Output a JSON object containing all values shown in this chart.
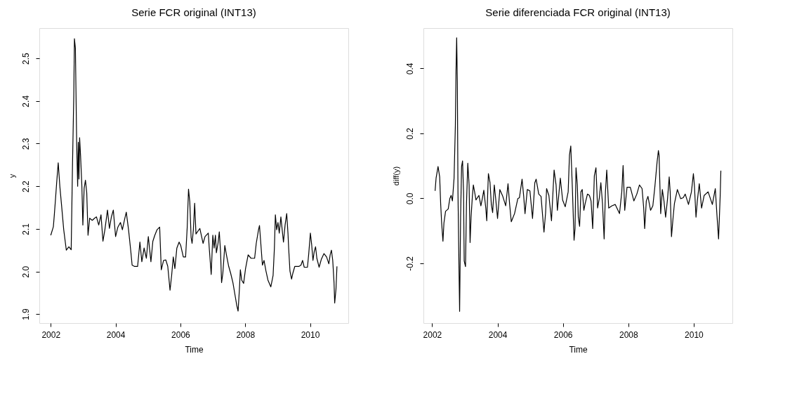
{
  "chart_data": [
    {
      "type": "line",
      "title": "Serie FCR original (INT13)",
      "xlabel": "Time",
      "ylabel": "y",
      "color": "#000000",
      "grid": false,
      "xlim": [
        2001.647,
        2011.18
      ],
      "xticks": [
        2002,
        2004,
        2006,
        2008,
        2010
      ],
      "ylim": [
        1.879,
        2.571
      ],
      "yticks": [
        {
          "value": 1.9,
          "label": "1.9"
        },
        {
          "value": 2.0,
          "label": "2.0"
        },
        {
          "value": 2.1,
          "label": "2.1"
        },
        {
          "value": 2.2,
          "label": "2.2"
        },
        {
          "value": 2.3,
          "label": "2.3"
        },
        {
          "value": 2.4,
          "label": "2.4"
        },
        {
          "value": 2.5,
          "label": "2.5"
        }
      ],
      "x": [
        2002.0,
        2002.08,
        2002.11,
        2002.15,
        2002.18,
        2002.23,
        2002.28,
        2002.33,
        2002.4,
        2002.48,
        2002.56,
        2002.63,
        2002.67,
        2002.71,
        2002.73,
        2002.76,
        2002.78,
        2002.8,
        2002.83,
        2002.85,
        2002.87,
        2002.89,
        2002.92,
        2002.96,
        2002.99,
        2003.03,
        2003.07,
        2003.11,
        2003.15,
        2003.2,
        2003.28,
        2003.35,
        2003.41,
        2003.48,
        2003.55,
        2003.61,
        2003.67,
        2003.75,
        2003.81,
        2003.87,
        2003.93,
        2004.0,
        2004.07,
        2004.15,
        2004.21,
        2004.28,
        2004.33,
        2004.4,
        2004.47,
        2004.51,
        2004.58,
        2004.68,
        2004.75,
        2004.81,
        2004.88,
        2004.95,
        2005.01,
        2005.09,
        2005.15,
        2005.21,
        2005.28,
        2005.36,
        2005.41,
        2005.48,
        2005.55,
        2005.61,
        2005.68,
        2005.73,
        2005.78,
        2005.83,
        2005.89,
        2005.96,
        2006.01,
        2006.09,
        2006.16,
        2006.21,
        2006.25,
        2006.29,
        2006.33,
        2006.36,
        2006.4,
        2006.44,
        2006.48,
        2006.6,
        2006.7,
        2006.76,
        2006.86,
        2006.89,
        2006.95,
        2007.0,
        2007.04,
        2007.08,
        2007.11,
        2007.16,
        2007.2,
        2007.24,
        2007.27,
        2007.31,
        2007.37,
        2007.42,
        2007.49,
        2007.55,
        2007.62,
        2007.68,
        2007.74,
        2007.78,
        2007.82,
        2007.85,
        2007.89,
        2007.95,
        2008.01,
        2008.09,
        2008.18,
        2008.29,
        2008.34,
        2008.41,
        2008.44,
        2008.47,
        2008.53,
        2008.58,
        2008.64,
        2008.7,
        2008.79,
        2008.86,
        2008.9,
        2008.93,
        2008.97,
        2009.01,
        2009.05,
        2009.1,
        2009.14,
        2009.18,
        2009.23,
        2009.28,
        2009.32,
        2009.34,
        2009.38,
        2009.43,
        2009.47,
        2009.53,
        2009.59,
        2009.66,
        2009.72,
        2009.77,
        2009.82,
        2009.92,
        2009.96,
        2010.01,
        2010.05,
        2010.09,
        2010.13,
        2010.17,
        2010.21,
        2010.28,
        2010.35,
        2010.43,
        2010.51,
        2010.58,
        2010.62,
        2010.66,
        2010.7,
        2010.74,
        2010.76,
        2010.8,
        2010.83
      ],
      "values": [
        2.085,
        2.105,
        2.133,
        2.174,
        2.206,
        2.255,
        2.2,
        2.158,
        2.098,
        2.05,
        2.058,
        2.051,
        2.247,
        2.411,
        2.546,
        2.524,
        2.411,
        2.298,
        2.2,
        2.303,
        2.217,
        2.314,
        2.271,
        2.2,
        2.109,
        2.195,
        2.214,
        2.185,
        2.085,
        2.125,
        2.12,
        2.125,
        2.128,
        2.109,
        2.133,
        2.071,
        2.098,
        2.144,
        2.101,
        2.128,
        2.144,
        2.082,
        2.104,
        2.115,
        2.098,
        2.123,
        2.139,
        2.098,
        2.047,
        2.015,
        2.012,
        2.012,
        2.069,
        2.023,
        2.055,
        2.031,
        2.082,
        2.023,
        2.071,
        2.085,
        2.098,
        2.104,
        2.004,
        2.026,
        2.027,
        2.012,
        1.956,
        1.991,
        2.034,
        2.007,
        2.055,
        2.069,
        2.061,
        2.034,
        2.034,
        2.104,
        2.193,
        2.163,
        2.08,
        2.066,
        2.098,
        2.16,
        2.088,
        2.101,
        2.066,
        2.082,
        2.09,
        2.055,
        1.993,
        2.085,
        2.055,
        2.085,
        2.044,
        2.066,
        2.093,
        2.044,
        1.974,
        1.996,
        2.061,
        2.039,
        2.012,
        1.996,
        1.974,
        1.947,
        1.92,
        1.907,
        1.958,
        2.004,
        1.98,
        1.972,
        2.007,
        2.039,
        2.031,
        2.031,
        2.066,
        2.098,
        2.108,
        2.077,
        2.015,
        2.026,
        2.001,
        1.98,
        1.964,
        1.991,
        2.055,
        2.133,
        2.098,
        2.115,
        2.09,
        2.128,
        2.098,
        2.069,
        2.109,
        2.136,
        2.088,
        2.055,
        2.001,
        1.982,
        1.996,
        2.012,
        2.012,
        2.012,
        2.015,
        2.026,
        2.01,
        2.01,
        2.042,
        2.09,
        2.063,
        2.026,
        2.047,
        2.058,
        2.031,
        2.01,
        2.029,
        2.042,
        2.034,
        2.018,
        2.039,
        2.05,
        2.026,
        1.974,
        1.926,
        1.958,
        2.012
      ]
    },
    {
      "type": "line",
      "title": "Serie diferenciada FCR original (INT13)",
      "xlabel": "Time",
      "ylabel": "diff(y)",
      "color": "#000000",
      "grid": false,
      "xlim": [
        2001.733,
        2011.183
      ],
      "xticks": [
        2002,
        2004,
        2006,
        2008,
        2010
      ],
      "ylim": [
        -0.384,
        0.524
      ],
      "yticks": [
        {
          "value": -0.2,
          "label": "-0.2"
        },
        {
          "value": 0.0,
          "label": "0.0"
        },
        {
          "value": 0.2,
          "label": "0.2"
        },
        {
          "value": 0.4,
          "label": "0.4"
        }
      ],
      "x": [
        2002.09,
        2002.12,
        2002.18,
        2002.23,
        2002.26,
        2002.29,
        2002.33,
        2002.36,
        2002.41,
        2002.49,
        2002.54,
        2002.58,
        2002.62,
        2002.67,
        2002.71,
        2002.73,
        2002.75,
        2002.77,
        2002.79,
        2002.82,
        2002.84,
        2002.87,
        2002.9,
        2002.93,
        2002.96,
        2002.98,
        2003.02,
        2003.05,
        2003.09,
        2003.13,
        2003.16,
        2003.19,
        2003.23,
        2003.26,
        2003.31,
        2003.34,
        2003.43,
        2003.49,
        2003.54,
        2003.58,
        2003.64,
        2003.67,
        2003.72,
        2003.77,
        2003.81,
        2003.85,
        2003.9,
        2003.94,
        2004.0,
        2004.07,
        2004.16,
        2004.25,
        2004.32,
        2004.37,
        2004.42,
        2004.52,
        2004.62,
        2004.67,
        2004.75,
        2004.8,
        2004.84,
        2004.91,
        2004.99,
        2005.07,
        2005.14,
        2005.18,
        2005.26,
        2005.33,
        2005.42,
        2005.47,
        2005.5,
        2005.57,
        2005.65,
        2005.73,
        2005.79,
        2005.83,
        2005.92,
        2005.99,
        2006.07,
        2006.16,
        2006.2,
        2006.24,
        2006.29,
        2006.34,
        2006.37,
        2006.4,
        2006.44,
        2006.47,
        2006.51,
        2006.55,
        2006.59,
        2006.64,
        2006.68,
        2006.75,
        2006.81,
        2006.86,
        2006.91,
        2006.96,
        2007.01,
        2007.06,
        2007.11,
        2007.16,
        2007.21,
        2007.26,
        2007.3,
        2007.34,
        2007.4,
        2007.5,
        2007.6,
        2007.73,
        2007.8,
        2007.84,
        2007.89,
        2007.96,
        2008.06,
        2008.17,
        2008.26,
        2008.34,
        2008.42,
        2008.47,
        2008.5,
        2008.55,
        2008.6,
        2008.68,
        2008.75,
        2008.81,
        2008.88,
        2008.92,
        2008.94,
        2008.99,
        2009.04,
        2009.09,
        2009.14,
        2009.2,
        2009.25,
        2009.28,
        2009.32,
        2009.37,
        2009.41,
        2009.5,
        2009.6,
        2009.68,
        2009.74,
        2009.84,
        2009.93,
        2009.99,
        2010.02,
        2010.07,
        2010.11,
        2010.17,
        2010.24,
        2010.32,
        2010.44,
        2010.57,
        2010.66,
        2010.71,
        2010.76,
        2010.81,
        2010.83
      ],
      "values": [
        0.023,
        0.062,
        0.098,
        0.066,
        -0.016,
        -0.076,
        -0.132,
        -0.076,
        -0.04,
        -0.033,
        -0.001,
        0.009,
        -0.008,
        0.062,
        0.225,
        0.392,
        0.494,
        0.36,
        0.016,
        -0.21,
        -0.348,
        -0.058,
        0.098,
        0.115,
        0.02,
        -0.193,
        -0.21,
        -0.016,
        0.108,
        0.041,
        -0.136,
        -0.058,
        0.006,
        0.041,
        0.013,
        -0.005,
        0.009,
        -0.023,
        0.002,
        0.025,
        -0.03,
        -0.069,
        0.076,
        0.048,
        -0.019,
        -0.044,
        0.041,
        0.002,
        -0.062,
        0.027,
        0.006,
        -0.023,
        0.045,
        -0.019,
        -0.072,
        -0.047,
        -0.001,
        0.002,
        0.059,
        0.006,
        -0.047,
        0.027,
        0.023,
        -0.062,
        0.048,
        0.059,
        0.013,
        0.006,
        -0.104,
        -0.044,
        0.03,
        0.009,
        -0.069,
        0.087,
        0.041,
        -0.037,
        0.062,
        -0.005,
        -0.026,
        0.02,
        0.133,
        0.161,
        0.027,
        -0.129,
        -0.093,
        0.094,
        0.041,
        -0.058,
        -0.086,
        0.02,
        0.027,
        -0.037,
        -0.016,
        0.013,
        0.009,
        -0.008,
        -0.093,
        0.069,
        0.094,
        -0.03,
        -0.001,
        0.048,
        -0.016,
        -0.125,
        0.02,
        0.087,
        -0.03,
        -0.023,
        -0.019,
        -0.047,
        0.02,
        0.101,
        -0.037,
        0.034,
        0.034,
        -0.008,
        0.013,
        0.041,
        0.03,
        -0.03,
        -0.093,
        -0.008,
        0.006,
        -0.037,
        -0.023,
        0.034,
        0.112,
        0.147,
        0.133,
        -0.047,
        0.027,
        -0.008,
        -0.058,
        -0.001,
        0.066,
        0.02,
        -0.118,
        -0.058,
        -0.016,
        0.027,
        -0.001,
        0.002,
        0.013,
        -0.019,
        0.02,
        0.076,
        0.041,
        -0.058,
        -0.008,
        0.045,
        -0.03,
        0.009,
        0.02,
        -0.019,
        0.03,
        -0.051,
        -0.125,
        0.009,
        0.085
      ]
    }
  ]
}
